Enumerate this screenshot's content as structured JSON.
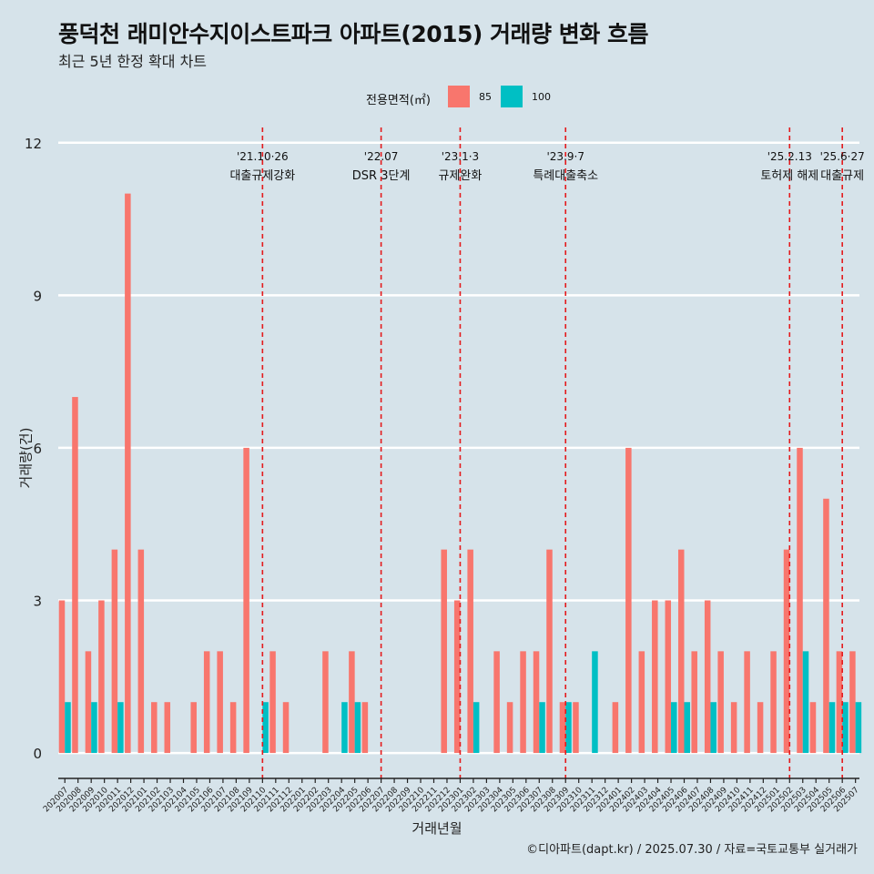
{
  "title": "풍덕천 래미안수지이스트파크 아파트(2015) 거래량 변화 흐름",
  "subtitle": "최근 5년 한정 확대 차트",
  "caption": "©디아파트(dapt.kr) / 2025.07.30 / 자료=국토교통부 실거래가",
  "legend_title": "전용면적(㎡)",
  "colors": {
    "85": "#f8766d",
    "100": "#00bfc4",
    "background": "#d6e3ea",
    "grid": "#ffffff",
    "event_line": "#e41a1c"
  },
  "chart_data": {
    "type": "bar",
    "xlabel": "거래년월",
    "ylabel": "거래량(건)",
    "ylim": [
      -0.5,
      12.3
    ],
    "yticks": [
      0,
      3,
      6,
      9,
      12
    ],
    "grid": true,
    "legend_position": "top",
    "categories": [
      "202007",
      "202008",
      "202009",
      "202010",
      "202011",
      "202012",
      "202101",
      "202102",
      "202103",
      "202104",
      "202105",
      "202106",
      "202107",
      "202108",
      "202109",
      "202110",
      "202111",
      "202112",
      "202201",
      "202202",
      "202203",
      "202204",
      "202205",
      "202206",
      "202207",
      "202208",
      "202209",
      "202210",
      "202211",
      "202212",
      "202301",
      "202302",
      "202303",
      "202304",
      "202305",
      "202306",
      "202307",
      "202308",
      "202309",
      "202310",
      "202311",
      "202312",
      "202401",
      "202402",
      "202403",
      "202404",
      "202405",
      "202406",
      "202407",
      "202408",
      "202409",
      "202410",
      "202411",
      "202412",
      "202501",
      "202502",
      "202503",
      "202504",
      "202505",
      "202506",
      "202507"
    ],
    "series": [
      {
        "name": "85",
        "values": [
          3,
          7,
          2,
          3,
          4,
          11,
          4,
          1,
          1,
          0,
          1,
          2,
          2,
          1,
          6,
          0,
          2,
          1,
          0,
          0,
          2,
          0,
          2,
          1,
          0,
          0,
          0,
          0,
          0,
          4,
          3,
          4,
          0,
          2,
          1,
          2,
          2,
          4,
          1,
          1,
          0,
          0,
          1,
          6,
          2,
          3,
          3,
          4,
          2,
          3,
          2,
          1,
          2,
          1,
          2,
          4,
          6,
          1,
          5,
          2,
          2
        ]
      },
      {
        "name": "100",
        "values": [
          1,
          0,
          1,
          0,
          1,
          0,
          0,
          0,
          0,
          0,
          0,
          0,
          0,
          0,
          0,
          1,
          0,
          0,
          0,
          0,
          0,
          1,
          1,
          0,
          0,
          0,
          0,
          0,
          0,
          0,
          0,
          1,
          0,
          0,
          0,
          0,
          1,
          0,
          1,
          0,
          2,
          0,
          0,
          0,
          0,
          0,
          1,
          1,
          0,
          1,
          0,
          0,
          0,
          0,
          0,
          0,
          2,
          0,
          1,
          1,
          1
        ]
      }
    ],
    "events": [
      {
        "position": 15,
        "date": "'21.10·26",
        "label": "대출규제강화"
      },
      {
        "position": 24,
        "date": "'22.07",
        "label": "DSR 3단계"
      },
      {
        "position": 30,
        "date": "'23.1·3",
        "label": "규제완화"
      },
      {
        "position": 38,
        "date": "'23.9·7",
        "label": "특례대출축소"
      },
      {
        "position": 55,
        "date": "'25.2.13",
        "label": "토허제 해제"
      },
      {
        "position": 59,
        "date": "'25.6·27",
        "label": "대출규제"
      }
    ]
  }
}
